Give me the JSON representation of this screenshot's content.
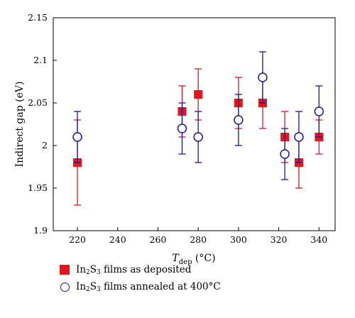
{
  "chart_data": {
    "type": "scatter",
    "title": "",
    "xlabel": {
      "main": "T",
      "sub": "dep",
      "unit": " (°C)"
    },
    "ylabel": "Indirect gap (eV)",
    "xlim": [
      208,
      348
    ],
    "ylim": [
      1.9,
      2.15
    ],
    "xticks": [
      220,
      240,
      260,
      280,
      300,
      320,
      340
    ],
    "yticks": [
      1.9,
      1.95,
      2,
      2.05,
      2.1,
      2.15
    ],
    "ytick_labels": [
      "1.9",
      "1.95",
      "2",
      "2.05",
      "2.1",
      "2.15"
    ],
    "grid": false,
    "legend_position": "bottom-left",
    "series": [
      {
        "name": "In2S3 films as deposited",
        "label": {
          "pre": "In",
          "sub1": "2",
          "mid": "S",
          "sub2": "3",
          "post": " films as deposited"
        },
        "marker": "square",
        "color": "#e8141b",
        "points": [
          {
            "x": 220,
            "y": 1.98,
            "ylo": 1.93,
            "yhi": 2.03
          },
          {
            "x": 272,
            "y": 2.04,
            "ylo": 2.01,
            "yhi": 2.07
          },
          {
            "x": 280,
            "y": 2.06,
            "ylo": 2.03,
            "yhi": 2.09
          },
          {
            "x": 300,
            "y": 2.05,
            "ylo": 2.02,
            "yhi": 2.08
          },
          {
            "x": 312,
            "y": 2.05,
            "ylo": 2.02,
            "yhi": 2.08
          },
          {
            "x": 323,
            "y": 2.01,
            "ylo": 1.98,
            "yhi": 2.04
          },
          {
            "x": 330,
            "y": 1.98,
            "ylo": 1.95,
            "yhi": 2.01
          },
          {
            "x": 340,
            "y": 2.01,
            "ylo": 1.99,
            "yhi": 2.03
          }
        ]
      },
      {
        "name": "In2S3 films annealed at 400°C",
        "label": {
          "pre": "In",
          "sub1": "2",
          "mid": "S",
          "sub2": "3",
          "post": " films annealed at 400°C"
        },
        "marker": "circle",
        "color": "#1515b0",
        "points": [
          {
            "x": 220,
            "y": 2.01,
            "ylo": 1.98,
            "yhi": 2.04
          },
          {
            "x": 272,
            "y": 2.02,
            "ylo": 1.99,
            "yhi": 2.05
          },
          {
            "x": 280,
            "y": 2.01,
            "ylo": 1.98,
            "yhi": 2.04
          },
          {
            "x": 300,
            "y": 2.03,
            "ylo": 2.0,
            "yhi": 2.06
          },
          {
            "x": 312,
            "y": 2.08,
            "ylo": 2.05,
            "yhi": 2.11
          },
          {
            "x": 323,
            "y": 1.99,
            "ylo": 1.96,
            "yhi": 2.02
          },
          {
            "x": 330,
            "y": 2.01,
            "ylo": 1.98,
            "yhi": 2.04
          },
          {
            "x": 340,
            "y": 2.04,
            "ylo": 2.01,
            "yhi": 2.07
          }
        ]
      }
    ]
  }
}
